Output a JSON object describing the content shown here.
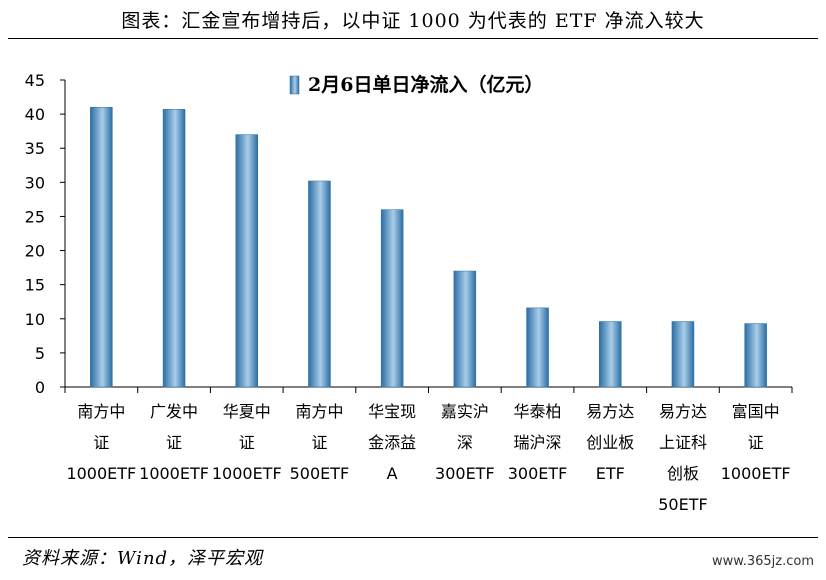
{
  "title": "图表：汇金宣布增持后，以中证 1000 为代表的 ETF 净流入较大",
  "source": "资料来源：Wind，泽平宏观",
  "watermark": "www.365jz.com",
  "colors": {
    "bar_dark": "#2b6ea5",
    "bar_light": "#a9cde8",
    "axis": "#000000"
  },
  "chart_data": {
    "type": "bar",
    "ylim": [
      0,
      45
    ],
    "yticks": [
      0,
      5,
      10,
      15,
      20,
      25,
      30,
      35,
      40,
      45
    ],
    "grid": false,
    "legend": "top-center",
    "series": [
      {
        "name": "2月6日单日净流入（亿元）",
        "values": [
          41.0,
          40.7,
          37.0,
          30.2,
          26.0,
          17.0,
          11.6,
          9.6,
          9.6,
          9.3
        ]
      }
    ],
    "categories": [
      [
        "南方中",
        "证",
        "1000ETF"
      ],
      [
        "广发中",
        "证",
        "1000ETF"
      ],
      [
        "华夏中",
        "证",
        "1000ETF"
      ],
      [
        "南方中",
        "证",
        "500ETF"
      ],
      [
        "华宝现",
        "金添益",
        "A"
      ],
      [
        "嘉实沪",
        "深",
        "300ETF"
      ],
      [
        "华泰柏",
        "瑞沪深",
        "300ETF"
      ],
      [
        "易方达",
        "创业板",
        "ETF"
      ],
      [
        "易方达",
        "上证科",
        "创板",
        "50ETF"
      ],
      [
        "富国中",
        "证",
        "1000ETF"
      ]
    ]
  }
}
